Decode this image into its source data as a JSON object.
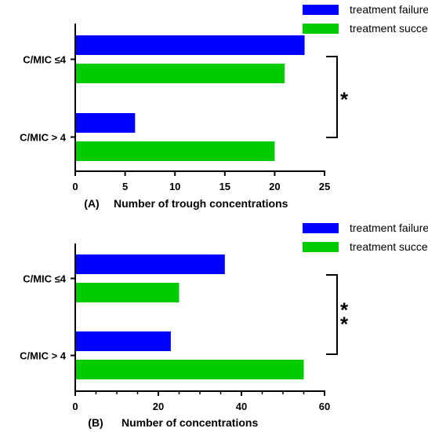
{
  "chart_data": [
    {
      "type": "bar",
      "orientation": "horizontal",
      "panel_label": "(A)",
      "xlabel": "Number of trough concentrations",
      "categories": [
        "C/MIC ≤4",
        "C/MIC > 4"
      ],
      "series": [
        {
          "name": "treatment failure",
          "color": "#0000ff",
          "values": [
            23,
            6
          ]
        },
        {
          "name": "treatment success",
          "color": "#00cc00",
          "values": [
            21,
            20
          ]
        }
      ],
      "xlim": [
        0,
        25
      ],
      "xticks": [
        "0",
        "5",
        "10",
        "15",
        "20",
        "25"
      ],
      "legend_position": "top-right",
      "significance": "*",
      "grid": false
    },
    {
      "type": "bar",
      "orientation": "horizontal",
      "panel_label": "(B)",
      "xlabel": "Number of concentrations",
      "categories": [
        "C/MIC ≤4",
        "C/MIC > 4"
      ],
      "series": [
        {
          "name": "treatment failure",
          "color": "#0000ff",
          "values": [
            36,
            23
          ]
        },
        {
          "name": "treatment success",
          "color": "#00cc00",
          "values": [
            25,
            55
          ]
        }
      ],
      "xlim": [
        0,
        60
      ],
      "xticks": [
        "0",
        "20",
        "40",
        "60"
      ],
      "legend_position": "top-right",
      "significance": "**",
      "grid": false
    }
  ]
}
